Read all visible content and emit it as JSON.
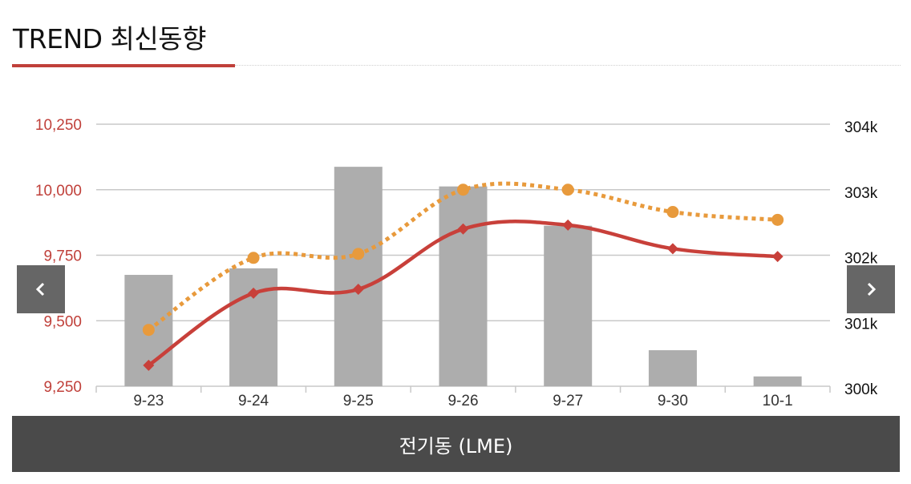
{
  "page": {
    "title": "TREND 최신동향"
  },
  "colors": {
    "accent": "#c0403a",
    "left_axis_text": "#c0403a",
    "right_axis_text": "#111111",
    "bar": "#adadad",
    "line_primary": "#c8403a",
    "line_secondary": "#e89a3c",
    "gridline": "#c8c8c8",
    "nav_button": "#666666",
    "footer_bg": "#4a4a4a"
  },
  "navigation": {
    "prev_icon": "chevron-left-icon",
    "next_icon": "chevron-right-icon"
  },
  "footer": {
    "label": "전기동 (LME)"
  },
  "chart_data": {
    "type": "bar",
    "categories": [
      "9-23",
      "9-24",
      "9-25",
      "9-26",
      "9-27",
      "9-30",
      "10-1"
    ],
    "y_left": {
      "ticks": [
        "10,250",
        "10,000",
        "9,750",
        "9,500",
        "9,250"
      ],
      "tick_values": [
        10250,
        10000,
        9750,
        9500,
        9250
      ],
      "ylim": [
        9250,
        10250
      ]
    },
    "y_right": {
      "ticks": [
        "304k",
        "303k",
        "302k",
        "301k",
        "300k"
      ],
      "tick_values": [
        304000,
        303000,
        302000,
        301000,
        300000
      ],
      "ylim": [
        300000,
        304000
      ]
    },
    "grid": true,
    "legend": "none",
    "series": [
      {
        "type": "bar",
        "axis": "right",
        "values": [
          301700,
          301800,
          303350,
          303050,
          302450,
          300550,
          300150
        ]
      },
      {
        "type": "line",
        "axis": "left",
        "style": "solid",
        "marker": "diamond",
        "values": [
          9330,
          9605,
          9620,
          9850,
          9865,
          9775,
          9745
        ]
      },
      {
        "type": "line",
        "axis": "left",
        "style": "dotted",
        "marker": "circle",
        "values": [
          9465,
          9740,
          9755,
          10000,
          10000,
          9915,
          9885
        ]
      }
    ]
  }
}
